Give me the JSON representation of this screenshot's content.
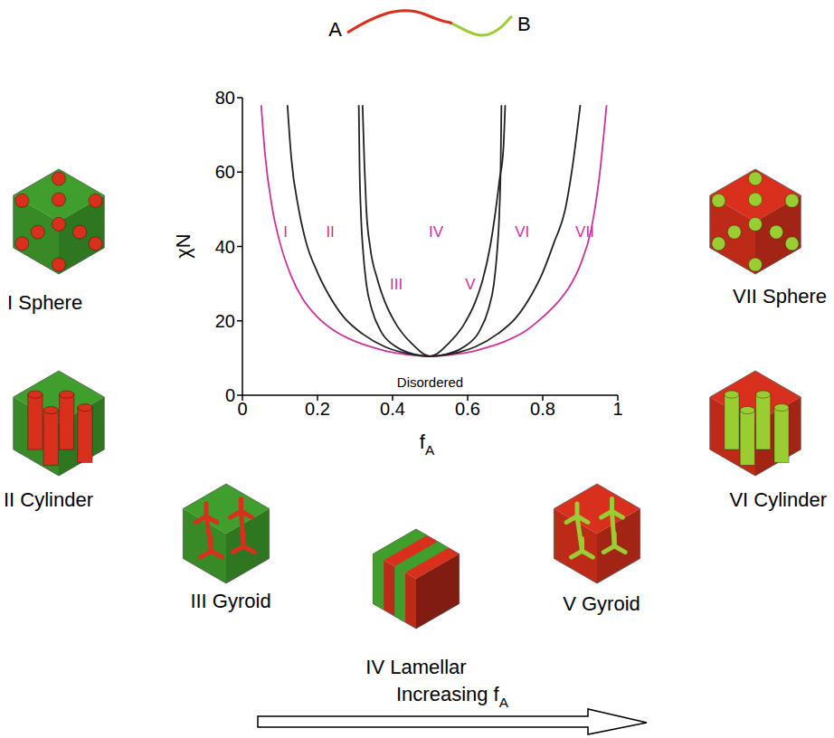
{
  "chart_data": {
    "type": "line",
    "xlabel": {
      "text": "f",
      "subscript": "A"
    },
    "ylabel": "χN",
    "xlim": [
      0,
      1
    ],
    "ylim": [
      0,
      80
    ],
    "xticks": [
      0,
      0.2,
      0.4,
      0.6,
      0.8,
      1
    ],
    "yticks": [
      0,
      20,
      40,
      60,
      80
    ],
    "grid": false,
    "series": [
      {
        "color": "#cc3399",
        "x": [
          0.05,
          0.06,
          0.08,
          0.1,
          0.13,
          0.16,
          0.2,
          0.25,
          0.3,
          0.35,
          0.4,
          0.45,
          0.5,
          0.55,
          0.6,
          0.65,
          0.7,
          0.75,
          0.8,
          0.84,
          0.87,
          0.9,
          0.93,
          0.95,
          0.97
        ],
        "values": [
          78,
          65,
          50,
          41,
          32,
          26,
          21,
          17,
          14.5,
          12.8,
          11.5,
          10.8,
          10.5,
          10.8,
          11.5,
          12.8,
          14.5,
          17,
          21,
          25,
          29,
          35,
          45,
          58,
          78
        ]
      },
      {
        "color": "#222222",
        "x": [
          0.12,
          0.13,
          0.15,
          0.17,
          0.2,
          0.23,
          0.27,
          0.32,
          0.38,
          0.44,
          0.5,
          0.56,
          0.62,
          0.68,
          0.73,
          0.77,
          0.8,
          0.83,
          0.86,
          0.88,
          0.9
        ],
        "values": [
          78,
          64,
          50,
          41,
          33,
          27,
          21,
          16.5,
          13,
          11.2,
          10.5,
          11.2,
          13,
          16.5,
          21,
          27,
          33,
          41,
          50,
          62,
          78
        ]
      },
      {
        "color": "#222222",
        "x": [
          0.31,
          0.312,
          0.316,
          0.322,
          0.33,
          0.345,
          0.37,
          0.41,
          0.46,
          0.5,
          0.54,
          0.59,
          0.63,
          0.655,
          0.67,
          0.678,
          0.684,
          0.688,
          0.69
        ],
        "values": [
          78,
          62,
          48,
          38,
          30,
          23,
          17,
          13,
          11,
          10.5,
          11,
          13,
          17,
          23,
          30,
          38,
          48,
          62,
          78
        ]
      },
      {
        "color": "#222222",
        "x": [
          0.32,
          0.325,
          0.33,
          0.34,
          0.36,
          0.38,
          0.41,
          0.45,
          0.5,
          0.55,
          0.59,
          0.62,
          0.64,
          0.66,
          0.675,
          0.685,
          0.695,
          0.7
        ],
        "values": [
          78,
          62,
          50,
          40,
          31,
          25,
          19,
          14,
          10.5,
          14,
          19,
          25,
          31,
          40,
          50,
          58,
          66,
          78
        ]
      }
    ],
    "annotations": [
      {
        "text": "I",
        "x": 0.115,
        "y": 44,
        "color": "#cc3399"
      },
      {
        "text": "II",
        "x": 0.234,
        "y": 44,
        "color": "#cc3399"
      },
      {
        "text": "III",
        "x": 0.41,
        "y": 30,
        "color": "#cc3399"
      },
      {
        "text": "IV",
        "x": 0.516,
        "y": 44,
        "color": "#cc3399"
      },
      {
        "text": "V",
        "x": 0.607,
        "y": 30,
        "color": "#cc3399"
      },
      {
        "text": "VI",
        "x": 0.745,
        "y": 44,
        "color": "#cc3399"
      },
      {
        "text": "VII",
        "x": 0.912,
        "y": 44,
        "color": "#cc3399"
      },
      {
        "text": "Disordered",
        "x": 0.5,
        "y": 3.5,
        "color": "#000000"
      }
    ]
  },
  "diagram": {
    "molecule": {
      "left": "A",
      "right": "B"
    },
    "phases": [
      {
        "label": "I Sphere"
      },
      {
        "label": "II Cylinder"
      },
      {
        "label": "III Gyroid"
      },
      {
        "label": "IV Lamellar"
      },
      {
        "label": "V Gyroid"
      },
      {
        "label": "VI Cylinder"
      },
      {
        "label": "VII Sphere"
      }
    ],
    "arrow": {
      "text": "Increasing f",
      "subscript": "A"
    }
  }
}
